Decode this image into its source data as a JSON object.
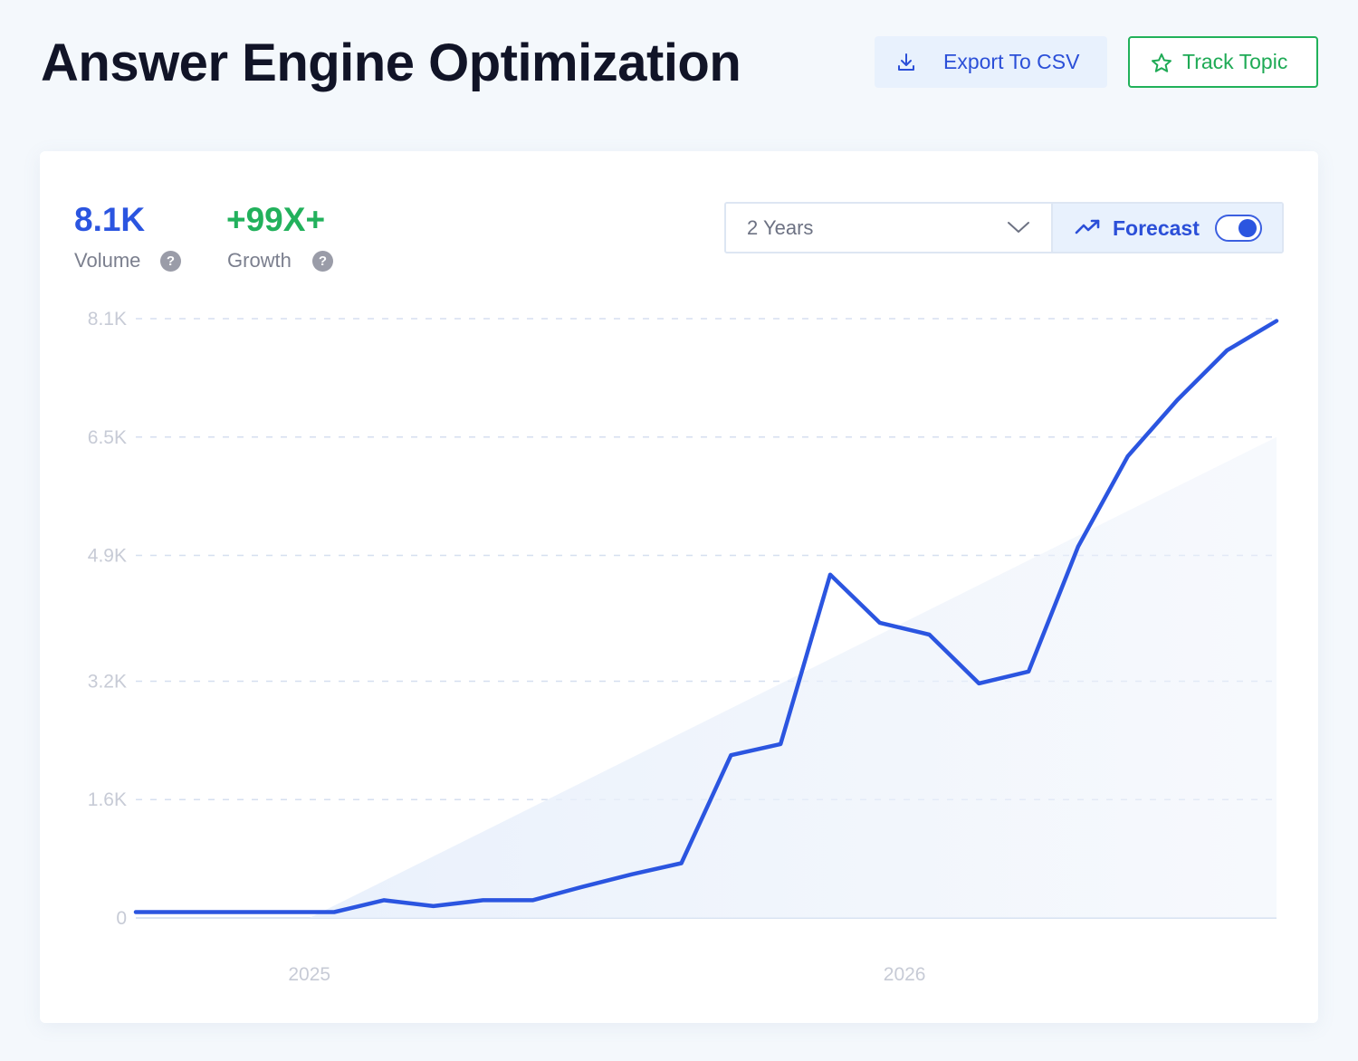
{
  "header": {
    "title": "Answer Engine Optimization",
    "export_label": "Export To CSV",
    "track_label": "Track Topic"
  },
  "metrics": {
    "volume_value": "8.1K",
    "volume_label": "Volume",
    "growth_value": "+99X+",
    "growth_label": "Growth",
    "help_glyph": "?"
  },
  "controls": {
    "range_value": "2 Years",
    "forecast_label": "Forecast",
    "forecast_enabled": true
  },
  "icons": {
    "export": "download-icon",
    "track": "star-icon",
    "range": "chevron-down-icon",
    "forecast": "trending-up-icon",
    "help": "question-circle-icon"
  },
  "colors": {
    "accent_blue": "#2b55e0",
    "accent_green": "#22b15c",
    "line": "#2b55e0"
  },
  "chart_data": {
    "type": "line",
    "y_tick_labels": [
      "0",
      "1.6K",
      "3.2K",
      "4.9K",
      "6.5K",
      "8.1K"
    ],
    "y_ticks": [
      0,
      1600,
      3200,
      4900,
      6500,
      8100
    ],
    "ylim": [
      0,
      8100
    ],
    "x_tick_labels": [
      "2025",
      "2026"
    ],
    "x_ticks": [
      7,
      31
    ],
    "xlim": [
      0,
      46
    ],
    "grid": true,
    "series": [
      {
        "x": [
          0,
          2,
          4,
          6,
          8,
          10,
          12,
          14,
          16,
          18,
          20,
          22,
          24,
          26,
          28,
          30,
          32,
          34,
          36,
          38,
          40,
          42,
          44,
          46
        ],
        "values": [
          80,
          80,
          80,
          80,
          80,
          240,
          160,
          240,
          240,
          420,
          590,
          740,
          2200,
          2350,
          4640,
          3990,
          3830,
          3170,
          3330,
          5020,
          6240,
          7000,
          7670,
          8070
        ]
      }
    ],
    "forecast_trend": {
      "start": [
        7,
        0
      ],
      "end": [
        46,
        6500
      ]
    }
  }
}
